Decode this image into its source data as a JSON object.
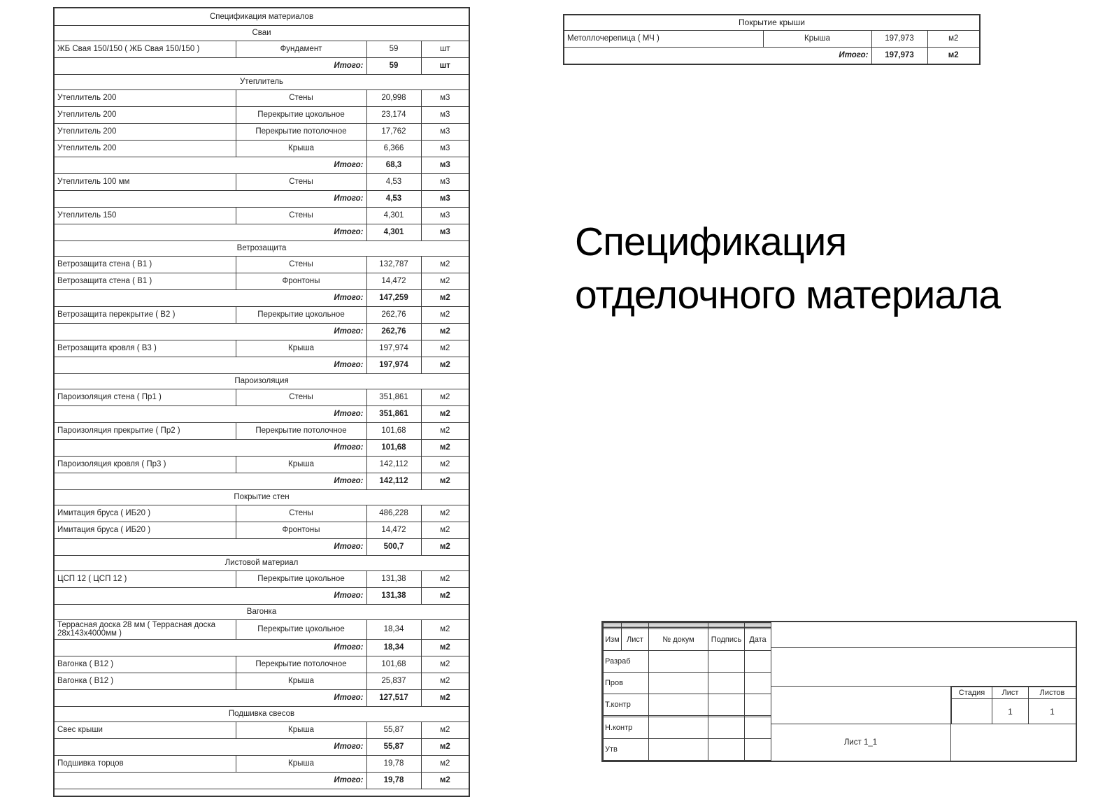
{
  "big_title": {
    "line1": "Спецификация",
    "line2": "отделочного материала"
  },
  "spec_table": {
    "title": "Спецификация материалов",
    "totals_label": "Итого:",
    "rows": [
      {
        "type": "section",
        "label": "Сваи"
      },
      {
        "type": "item",
        "name": "ЖБ Свая 150/150 ( ЖБ Свая 150/150 )",
        "loc": "Фундамент",
        "qty": "59",
        "unit": "шт"
      },
      {
        "type": "total",
        "qty": "59",
        "unit": "шт"
      },
      {
        "type": "section",
        "label": "Утеплитель"
      },
      {
        "type": "item",
        "name": "Утеплитель 200",
        "loc": "Стены",
        "qty": "20,998",
        "unit": "м3"
      },
      {
        "type": "item",
        "name": "Утеплитель 200",
        "loc": "Перекрытие цокольное",
        "qty": "23,174",
        "unit": "м3"
      },
      {
        "type": "item",
        "name": "Утеплитель 200",
        "loc": "Перекрытие потолочное",
        "qty": "17,762",
        "unit": "м3"
      },
      {
        "type": "item",
        "name": "Утеплитель 200",
        "loc": "Крыша",
        "qty": "6,366",
        "unit": "м3"
      },
      {
        "type": "total",
        "qty": "68,3",
        "unit": "м3"
      },
      {
        "type": "item",
        "name": "Утеплитель 100 мм",
        "loc": "Стены",
        "qty": "4,53",
        "unit": "м3"
      },
      {
        "type": "total",
        "qty": "4,53",
        "unit": "м3"
      },
      {
        "type": "item",
        "name": "Утеплитель 150",
        "loc": "Стены",
        "qty": "4,301",
        "unit": "м3"
      },
      {
        "type": "total",
        "qty": "4,301",
        "unit": "м3"
      },
      {
        "type": "section",
        "label": "Ветрозащита"
      },
      {
        "type": "item",
        "name": "Ветрозащита стена ( В1 )",
        "loc": "Стены",
        "qty": "132,787",
        "unit": "м2"
      },
      {
        "type": "item",
        "name": "Ветрозащита стена ( В1 )",
        "loc": "Фронтоны",
        "qty": "14,472",
        "unit": "м2"
      },
      {
        "type": "total",
        "qty": "147,259",
        "unit": "м2"
      },
      {
        "type": "item",
        "name": "Ветрозащита перекрытие ( В2 )",
        "loc": "Перекрытие цокольное",
        "qty": "262,76",
        "unit": "м2"
      },
      {
        "type": "total",
        "qty": "262,76",
        "unit": "м2"
      },
      {
        "type": "item",
        "name": "Ветрозащита кровля ( В3 )",
        "loc": "Крыша",
        "qty": "197,974",
        "unit": "м2"
      },
      {
        "type": "total",
        "qty": "197,974",
        "unit": "м2"
      },
      {
        "type": "section",
        "label": "Пароизоляция"
      },
      {
        "type": "item",
        "name": "Пароизоляция стена ( Пр1 )",
        "loc": "Стены",
        "qty": "351,861",
        "unit": "м2"
      },
      {
        "type": "total",
        "qty": "351,861",
        "unit": "м2"
      },
      {
        "type": "item",
        "name": "Пароизоляция прекрытие ( Пр2 )",
        "loc": "Перекрытие потолочное",
        "qty": "101,68",
        "unit": "м2"
      },
      {
        "type": "total",
        "qty": "101,68",
        "unit": "м2"
      },
      {
        "type": "item",
        "name": "Пароизоляция кровля ( Пр3 )",
        "loc": "Крыша",
        "qty": "142,112",
        "unit": "м2"
      },
      {
        "type": "total",
        "qty": "142,112",
        "unit": "м2"
      },
      {
        "type": "section",
        "label": "Покрытие стен"
      },
      {
        "type": "item",
        "name": "Имитация бруса ( ИБ20 )",
        "loc": "Стены",
        "qty": "486,228",
        "unit": "м2"
      },
      {
        "type": "item",
        "name": "Имитация бруса ( ИБ20 )",
        "loc": "Фронтоны",
        "qty": "14,472",
        "unit": "м2"
      },
      {
        "type": "total",
        "qty": "500,7",
        "unit": "м2"
      },
      {
        "type": "section",
        "label": "Листовой материал"
      },
      {
        "type": "item",
        "name": "ЦСП 12 ( ЦСП 12 )",
        "loc": "Перекрытие цокольное",
        "qty": "131,38",
        "unit": "м2"
      },
      {
        "type": "total",
        "qty": "131,38",
        "unit": "м2"
      },
      {
        "type": "section",
        "label": "Вагонка"
      },
      {
        "type": "item",
        "name": "Террасная доска 28 мм ( Террасная доска 28х143х4000мм )",
        "loc": "Перекрытие цокольное",
        "qty": "18,34",
        "unit": "м2"
      },
      {
        "type": "total",
        "qty": "18,34",
        "unit": "м2"
      },
      {
        "type": "item",
        "name": "Вагонка ( В12 )",
        "loc": "Перекрытие потолочное",
        "qty": "101,68",
        "unit": "м2"
      },
      {
        "type": "item",
        "name": "Вагонка ( В12 )",
        "loc": "Крыша",
        "qty": "25,837",
        "unit": "м2"
      },
      {
        "type": "total",
        "qty": "127,517",
        "unit": "м2"
      },
      {
        "type": "section",
        "label": "Подшивка свесов"
      },
      {
        "type": "item",
        "name": "Свес крыши",
        "loc": "Крыша",
        "qty": "55,87",
        "unit": "м2"
      },
      {
        "type": "total",
        "qty": "55,87",
        "unit": "м2"
      },
      {
        "type": "item",
        "name": "Подшивка торцов",
        "loc": "Крыша",
        "qty": "19,78",
        "unit": "м2"
      },
      {
        "type": "total",
        "qty": "19,78",
        "unit": "м2"
      },
      {
        "type": "spacer"
      }
    ]
  },
  "roof_table": {
    "title": "Покрытие крыши",
    "totals_label": "Итого:",
    "rows": [
      {
        "type": "item",
        "name": "Метоллочерепица ( МЧ )",
        "loc": "Крыша",
        "qty": "197,973",
        "unit": "м2"
      },
      {
        "type": "total",
        "qty": "197,973",
        "unit": "м2"
      }
    ]
  },
  "stamp": {
    "header_cols": [
      "Изм",
      "Лист",
      "№ докум",
      "Подпись",
      "Дата"
    ],
    "sign_rows": [
      "Разраб",
      "Пров",
      "Т.контр",
      "",
      "Н.контр",
      "Утв"
    ],
    "stage_cols": [
      "Стадия",
      "Лист",
      "Листов"
    ],
    "stage_values": [
      "",
      "1",
      "1"
    ],
    "sheet_label": "Лист 1_1"
  }
}
